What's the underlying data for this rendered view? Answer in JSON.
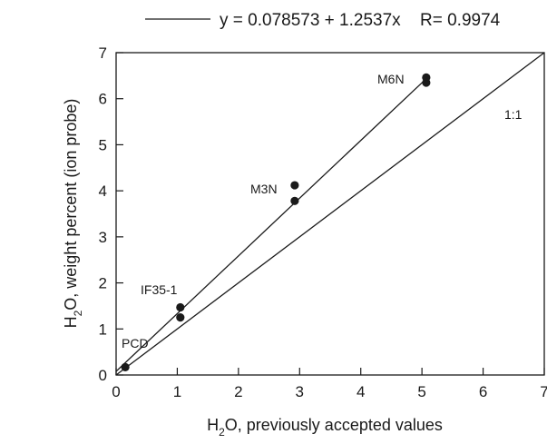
{
  "chart_data": {
    "type": "scatter",
    "legend": {
      "equation": "y = 0.078573 + 1.2537x",
      "r_text": "R= 0.9974"
    },
    "xlabel": {
      "main": "H",
      "sub": "2",
      "rest": "O, previously accepted values"
    },
    "ylabel": {
      "main": "H",
      "sub": "2",
      "rest": "O, weight percent (ion probe)"
    },
    "xlim": [
      0,
      7
    ],
    "ylim": [
      0,
      7
    ],
    "xticks": [
      0,
      1,
      2,
      3,
      4,
      5,
      6,
      7
    ],
    "yticks": [
      0,
      1,
      2,
      3,
      4,
      5,
      6,
      7
    ],
    "grid": false,
    "points": [
      {
        "x": 0.15,
        "y": 0.17
      },
      {
        "x": 1.05,
        "y": 1.25
      },
      {
        "x": 1.05,
        "y": 1.47
      },
      {
        "x": 2.92,
        "y": 3.78
      },
      {
        "x": 2.92,
        "y": 4.12
      },
      {
        "x": 5.07,
        "y": 6.35
      },
      {
        "x": 5.07,
        "y": 6.46
      }
    ],
    "point_labels": [
      "PCD",
      "IF35-1",
      "M3N",
      "M6N"
    ],
    "fit": {
      "intercept": 0.078573,
      "slope": 1.2537,
      "x_range": [
        0,
        5.07
      ]
    },
    "reference_line": {
      "label": "1:1",
      "slope": 1,
      "intercept": 0
    }
  }
}
